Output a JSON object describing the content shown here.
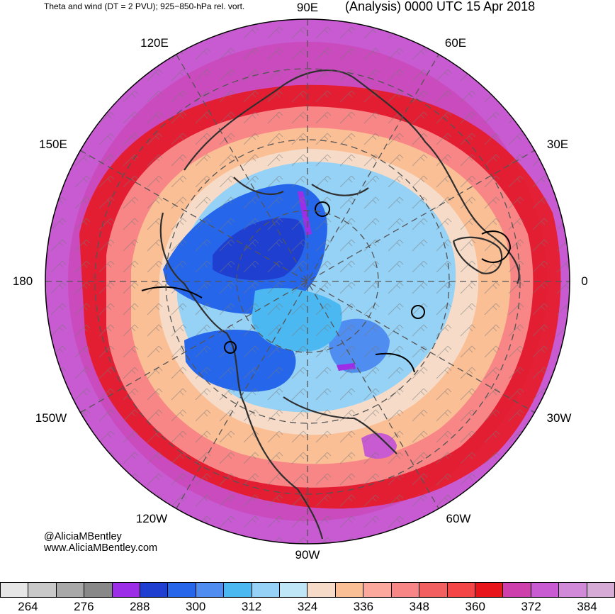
{
  "header": {
    "left_title": "Theta and wind (DT = 2 PVU); 925−850-hPa rel. vort.",
    "right_title": "(Analysis) 0000 UTC 15 Apr 2018"
  },
  "longitude_labels": {
    "lon_90e": "90E",
    "lon_60e": "60E",
    "lon_120e": "120E",
    "lon_30e": "30E",
    "lon_150e": "150E",
    "lon_180": "180",
    "lon_0": "0",
    "lon_150w": "150W",
    "lon_30w": "30W",
    "lon_120w": "120W",
    "lon_60w": "60W",
    "lon_90w": "90W"
  },
  "credits": {
    "handle": "@AliciaMBentley",
    "website": "www.AliciaMBentley.com"
  },
  "colorbar": {
    "colors": [
      "#e6e6e6",
      "#c8c8c8",
      "#a8a8a8",
      "#888888",
      "#9c2ee8",
      "#1f3fd1",
      "#2666ea",
      "#4f8ef0",
      "#4cb8f2",
      "#96d2f6",
      "#bee6f6",
      "#f6dcc8",
      "#fbbf96",
      "#fca89c",
      "#f88686",
      "#f26060",
      "#f44646",
      "#e8161a",
      "#cc3fac",
      "#c85ad2",
      "#d08ad8",
      "#d6abd6"
    ],
    "tick_labels": [
      "264",
      "276",
      "288",
      "300",
      "312",
      "324",
      "336",
      "348",
      "360",
      "372",
      "384"
    ]
  }
}
